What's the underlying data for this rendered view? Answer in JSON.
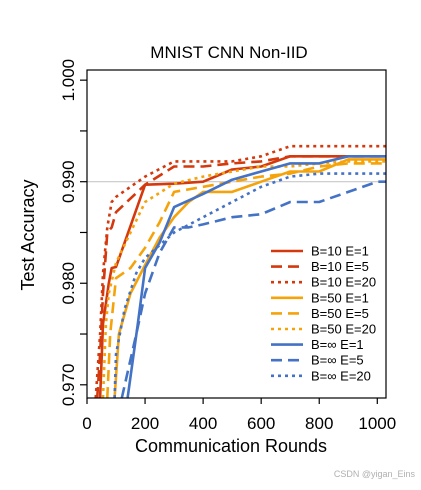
{
  "chart_data": {
    "type": "line",
    "title": "MNIST CNN Non-IID",
    "xlabel": "Communication Rounds",
    "ylabel": "Test Accuracy",
    "xlim": [
      0,
      1030
    ],
    "ylim": [
      0.9687,
      1.001
    ],
    "xticks": [
      0,
      200,
      400,
      600,
      800,
      1000
    ],
    "xtick_labels": [
      "0",
      "200",
      "400",
      "600",
      "800",
      "1000"
    ],
    "yticks": [
      0.97,
      0.975,
      0.98,
      0.985,
      0.99,
      0.995,
      1.0
    ],
    "ytick_labels": [
      {
        "value": 0.97,
        "label": "0.970"
      },
      {
        "value": 0.98,
        "label": "0.980"
      },
      {
        "value": 0.99,
        "label": "0.990"
      },
      {
        "value": 1.0,
        "label": "1.000"
      }
    ],
    "reference_line": 0.99,
    "grid": false,
    "legend_position": "lower-right",
    "series": [
      {
        "name": "B=10  E=1",
        "color": "#d4380d",
        "dash": "solid",
        "points": [
          [
            45,
            0.9687
          ],
          [
            55,
            0.976
          ],
          [
            75,
            0.98
          ],
          [
            85,
            0.9815
          ],
          [
            100,
            0.9816
          ],
          [
            200,
            0.9897
          ],
          [
            300,
            0.9898
          ],
          [
            400,
            0.99
          ],
          [
            500,
            0.9912
          ],
          [
            600,
            0.9915
          ],
          [
            700,
            0.9925
          ],
          [
            800,
            0.9925
          ],
          [
            900,
            0.9925
          ],
          [
            1030,
            0.9925
          ]
        ]
      },
      {
        "name": "B=10  E=5",
        "color": "#d4380d",
        "dash": "dashed",
        "points": [
          [
            35,
            0.9687
          ],
          [
            45,
            0.973
          ],
          [
            55,
            0.979
          ],
          [
            70,
            0.985
          ],
          [
            85,
            0.9855
          ],
          [
            100,
            0.987
          ],
          [
            200,
            0.9897
          ],
          [
            300,
            0.9915
          ],
          [
            400,
            0.9915
          ],
          [
            500,
            0.9918
          ],
          [
            600,
            0.992
          ],
          [
            700,
            0.9925
          ],
          [
            800,
            0.9925
          ],
          [
            900,
            0.9925
          ],
          [
            1030,
            0.9925
          ]
        ]
      },
      {
        "name": "B=10  E=20",
        "color": "#d4380d",
        "dash": "dotted",
        "points": [
          [
            30,
            0.9687
          ],
          [
            45,
            0.975
          ],
          [
            55,
            0.981
          ],
          [
            70,
            0.9855
          ],
          [
            85,
            0.988
          ],
          [
            100,
            0.9885
          ],
          [
            200,
            0.9905
          ],
          [
            300,
            0.992
          ],
          [
            400,
            0.992
          ],
          [
            500,
            0.992
          ],
          [
            600,
            0.9925
          ],
          [
            700,
            0.9935
          ],
          [
            800,
            0.9935
          ],
          [
            900,
            0.9935
          ],
          [
            1030,
            0.9935
          ]
        ]
      },
      {
        "name": "B=50  E=1",
        "color": "#f5a30b",
        "dash": "solid",
        "points": [
          [
            95,
            0.9687
          ],
          [
            110,
            0.975
          ],
          [
            150,
            0.979
          ],
          [
            200,
            0.9818
          ],
          [
            250,
            0.9845
          ],
          [
            300,
            0.9865
          ],
          [
            350,
            0.988
          ],
          [
            400,
            0.989
          ],
          [
            500,
            0.989
          ],
          [
            600,
            0.99
          ],
          [
            700,
            0.991
          ],
          [
            800,
            0.991
          ],
          [
            900,
            0.9922
          ],
          [
            1030,
            0.9922
          ]
        ]
      },
      {
        "name": "B=50  E=5",
        "color": "#f5a30b",
        "dash": "dashed",
        "points": [
          [
            70,
            0.9687
          ],
          [
            80,
            0.975
          ],
          [
            100,
            0.9805
          ],
          [
            150,
            0.9815
          ],
          [
            200,
            0.9835
          ],
          [
            250,
            0.986
          ],
          [
            300,
            0.989
          ],
          [
            400,
            0.9895
          ],
          [
            500,
            0.99
          ],
          [
            600,
            0.9905
          ],
          [
            700,
            0.9908
          ],
          [
            800,
            0.9915
          ],
          [
            900,
            0.9918
          ],
          [
            1030,
            0.9918
          ]
        ]
      },
      {
        "name": "B=50  E=20",
        "color": "#f5a30b",
        "dash": "dotted",
        "points": [
          [
            55,
            0.9687
          ],
          [
            65,
            0.976
          ],
          [
            75,
            0.979
          ],
          [
            100,
            0.982
          ],
          [
            150,
            0.985
          ],
          [
            200,
            0.988
          ],
          [
            300,
            0.9898
          ],
          [
            400,
            0.9905
          ],
          [
            500,
            0.991
          ],
          [
            600,
            0.9915
          ],
          [
            700,
            0.9915
          ],
          [
            800,
            0.9918
          ],
          [
            900,
            0.992
          ],
          [
            1030,
            0.992
          ]
        ]
      },
      {
        "name": "B=∞  E=1",
        "color": "#4472c4",
        "dash": "solid",
        "points": [
          [
            140,
            0.9687
          ],
          [
            175,
            0.976
          ],
          [
            200,
            0.9815
          ],
          [
            250,
            0.984
          ],
          [
            300,
            0.9875
          ],
          [
            400,
            0.9888
          ],
          [
            500,
            0.9902
          ],
          [
            600,
            0.991
          ],
          [
            700,
            0.9918
          ],
          [
            800,
            0.9918
          ],
          [
            900,
            0.9925
          ],
          [
            1030,
            0.9925
          ]
        ]
      },
      {
        "name": "B=∞  E=5",
        "color": "#4472c4",
        "dash": "dashed",
        "points": [
          [
            120,
            0.9687
          ],
          [
            170,
            0.975
          ],
          [
            200,
            0.979
          ],
          [
            250,
            0.983
          ],
          [
            300,
            0.9855
          ],
          [
            350,
            0.9855
          ],
          [
            400,
            0.9858
          ],
          [
            500,
            0.9865
          ],
          [
            600,
            0.9868
          ],
          [
            700,
            0.988
          ],
          [
            800,
            0.988
          ],
          [
            900,
            0.989
          ],
          [
            1000,
            0.99
          ],
          [
            1030,
            0.99
          ]
        ]
      },
      {
        "name": "B=∞  E=20",
        "color": "#4472c4",
        "dash": "dotted",
        "points": [
          [
            95,
            0.9687
          ],
          [
            100,
            0.973
          ],
          [
            130,
            0.9775
          ],
          [
            170,
            0.981
          ],
          [
            200,
            0.9825
          ],
          [
            300,
            0.985
          ],
          [
            400,
            0.9865
          ],
          [
            500,
            0.988
          ],
          [
            600,
            0.9895
          ],
          [
            700,
            0.9905
          ],
          [
            800,
            0.9908
          ],
          [
            900,
            0.9908
          ],
          [
            1030,
            0.9908
          ]
        ]
      }
    ]
  },
  "watermark": "CSDN @yigan_Eins"
}
